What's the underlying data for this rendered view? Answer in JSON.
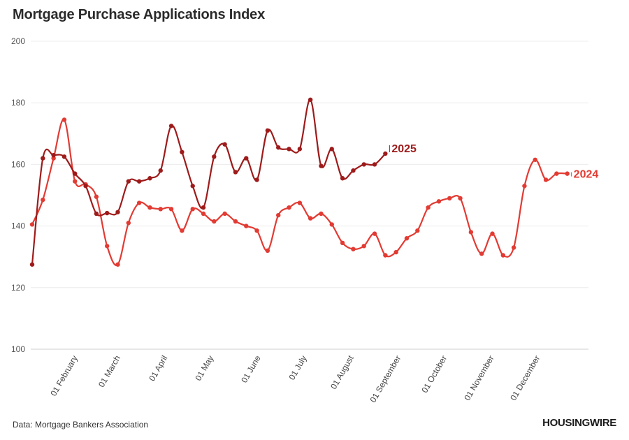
{
  "header": {
    "title": "Mortgage Purchase Applications Index"
  },
  "footer": {
    "source": "Data: Mortgage Bankers Association",
    "brand": "HOUSINGWIRE"
  },
  "colors": {
    "series_2025": "#9e1b1b",
    "series_2024": "#e23b33",
    "grid": "#ececec",
    "background": "#ffffff"
  },
  "chart_data": {
    "type": "line",
    "title": "Mortgage Purchase Applications Index",
    "xlabel": "",
    "ylabel": "",
    "ylim": [
      100,
      200
    ],
    "yticks": [
      100,
      120,
      140,
      160,
      180,
      200
    ],
    "xlim_week": [
      1,
      52
    ],
    "xticks": [
      {
        "label": "01 February",
        "week": 5
      },
      {
        "label": "01 March",
        "week": 9
      },
      {
        "label": "01 April",
        "week": 13.4
      },
      {
        "label": "01 May",
        "week": 17.7
      },
      {
        "label": "01 June",
        "week": 22.1
      },
      {
        "label": "01 July",
        "week": 26.4
      },
      {
        "label": "01 August",
        "week": 30.8
      },
      {
        "label": "01 September",
        "week": 35.2
      },
      {
        "label": "01 October",
        "week": 39.5
      },
      {
        "label": "01 November",
        "week": 43.9
      },
      {
        "label": "01 December",
        "week": 48.2
      }
    ],
    "series": [
      {
        "name": "2025",
        "label": "2025",
        "values": [
          127.5,
          162,
          163,
          162.5,
          157,
          153,
          144,
          144.2,
          144.5,
          154.5,
          154.5,
          155.5,
          158,
          172.5,
          164,
          153,
          146,
          162.5,
          166.5,
          157.5,
          162,
          155,
          171,
          165.5,
          165,
          165,
          181,
          159.5,
          165,
          155.5,
          158,
          160,
          160,
          163.5
        ]
      },
      {
        "name": "2024",
        "label": "2024",
        "values": [
          140.5,
          148.5,
          162,
          174.5,
          154.5,
          153.5,
          149.5,
          133.5,
          127.5,
          141,
          147.5,
          146,
          145.5,
          145.5,
          138.5,
          145.5,
          144,
          141.5,
          144,
          141.5,
          140,
          138.5,
          132,
          143.5,
          146,
          147.5,
          142.5,
          144,
          140.5,
          134.5,
          132.5,
          133.5,
          137.5,
          130.5,
          131.5,
          136,
          138.5,
          146,
          148,
          149,
          149,
          138,
          131,
          137.5,
          130.5,
          133,
          153,
          161.5,
          155,
          157,
          157
        ]
      }
    ]
  }
}
